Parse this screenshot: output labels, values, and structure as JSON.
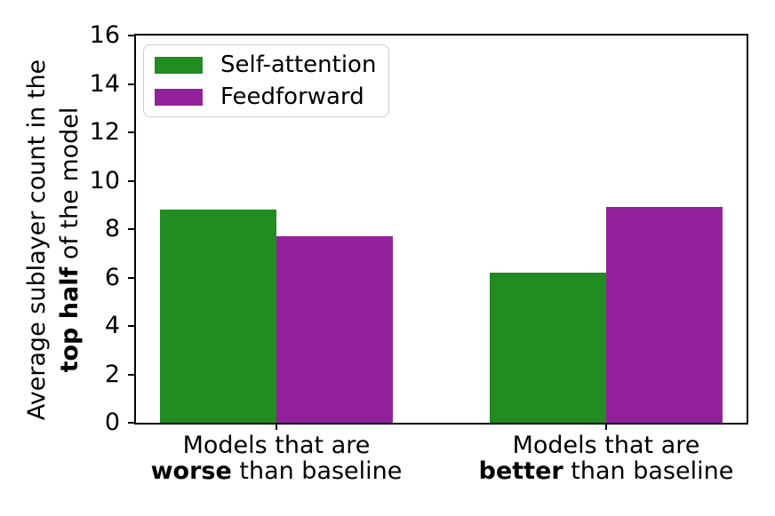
{
  "chart_data": {
    "type": "bar",
    "title": "",
    "xlabel": "",
    "ylabel": {
      "line1": "Average sublayer count in the",
      "line2_bold": "top half",
      "line2_rest": " of the model"
    },
    "categories": [
      {
        "line1": "Models that are",
        "bold": "worse",
        "rest": "than baseline"
      },
      {
        "line1": "Models that are",
        "bold": "better",
        "rest": "than baseline"
      }
    ],
    "series": [
      {
        "name": "Self-attention",
        "color": "#228B22",
        "values": [
          8.8,
          6.2
        ]
      },
      {
        "name": "Feedforward",
        "color": "#93219B",
        "values": [
          7.7,
          8.9
        ]
      }
    ],
    "ylim": [
      0,
      16
    ],
    "yticks": [
      0,
      2,
      4,
      6,
      8,
      10,
      12,
      14,
      16
    ],
    "grid": false,
    "legend_position": "upper left",
    "axis_color": "#000000",
    "background_color": "#ffffff"
  }
}
